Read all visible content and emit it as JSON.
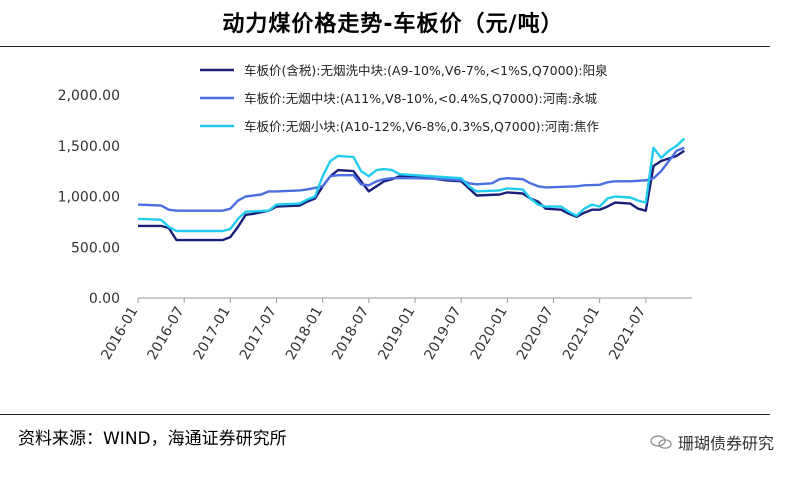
{
  "title": "动力煤价格走势-车板价（元/吨）",
  "source": "资料来源：WIND，海通证券研究所",
  "watermark": "珊瑚债券研究",
  "colors": {
    "dark_navy": "#1a1f7a",
    "royal_blue": "#4a6fe0",
    "cyan": "#22ccee"
  },
  "chart_data": {
    "type": "line",
    "title": "动力煤价格走势-车板价（元/吨）",
    "xlabel": "",
    "ylabel": "",
    "ylim": [
      0,
      2000
    ],
    "yticks": [
      "2,000.00",
      "1,500.00",
      "1,000.00",
      "500.00",
      "0.00"
    ],
    "ytick_values": [
      2000,
      1500,
      1000,
      500,
      0
    ],
    "xticks": [
      "2016-01",
      "2016-07",
      "2017-01",
      "2017-07",
      "2018-01",
      "2018-07",
      "2019-01",
      "2019-07",
      "2020-01",
      "2020-07",
      "2021-01",
      "2021-07"
    ],
    "grid": false,
    "legend_position": "top-right",
    "series": [
      {
        "name": "车板价(含税):无烟洗中块:(A9-10%,V6-7%,<1%S,Q7000):阳泉",
        "color": "#1a1f7a",
        "points": [
          [
            0,
            710
          ],
          [
            3,
            710
          ],
          [
            4,
            690
          ],
          [
            5,
            570
          ],
          [
            11,
            570
          ],
          [
            12,
            600
          ],
          [
            13,
            700
          ],
          [
            14,
            820
          ],
          [
            15,
            830
          ],
          [
            17,
            860
          ],
          [
            18,
            900
          ],
          [
            21,
            910
          ],
          [
            22,
            950
          ],
          [
            23,
            980
          ],
          [
            24,
            1100
          ],
          [
            25,
            1200
          ],
          [
            26,
            1260
          ],
          [
            28,
            1250
          ],
          [
            29,
            1150
          ],
          [
            30,
            1050
          ],
          [
            31,
            1100
          ],
          [
            32,
            1150
          ],
          [
            33,
            1170
          ],
          [
            34,
            1200
          ],
          [
            36,
            1190
          ],
          [
            38,
            1180
          ],
          [
            40,
            1160
          ],
          [
            42,
            1150
          ],
          [
            43,
            1080
          ],
          [
            44,
            1010
          ],
          [
            47,
            1020
          ],
          [
            48,
            1040
          ],
          [
            50,
            1030
          ],
          [
            51,
            980
          ],
          [
            52,
            950
          ],
          [
            53,
            880
          ],
          [
            55,
            870
          ],
          [
            56,
            830
          ],
          [
            57,
            800
          ],
          [
            58,
            840
          ],
          [
            59,
            870
          ],
          [
            60,
            870
          ],
          [
            61,
            900
          ],
          [
            62,
            940
          ],
          [
            64,
            930
          ],
          [
            65,
            880
          ],
          [
            66,
            860
          ],
          [
            67,
            1300
          ],
          [
            68,
            1350
          ],
          [
            70,
            1400
          ],
          [
            71,
            1450
          ]
        ]
      },
      {
        "name": "车板价:无烟中块:(A11%,V8-10%,<0.4%S,Q7000):河南:永城",
        "color": "#4a6fe0",
        "points": [
          [
            0,
            920
          ],
          [
            3,
            910
          ],
          [
            4,
            870
          ],
          [
            5,
            860
          ],
          [
            11,
            860
          ],
          [
            12,
            880
          ],
          [
            13,
            960
          ],
          [
            14,
            1000
          ],
          [
            16,
            1020
          ],
          [
            17,
            1050
          ],
          [
            18,
            1050
          ],
          [
            21,
            1060
          ],
          [
            22,
            1070
          ],
          [
            24,
            1100
          ],
          [
            25,
            1200
          ],
          [
            26,
            1210
          ],
          [
            28,
            1210
          ],
          [
            29,
            1120
          ],
          [
            30,
            1110
          ],
          [
            31,
            1150
          ],
          [
            32,
            1170
          ],
          [
            33,
            1180
          ],
          [
            36,
            1180
          ],
          [
            38,
            1175
          ],
          [
            40,
            1170
          ],
          [
            42,
            1160
          ],
          [
            43,
            1130
          ],
          [
            44,
            1120
          ],
          [
            46,
            1130
          ],
          [
            47,
            1170
          ],
          [
            48,
            1180
          ],
          [
            50,
            1170
          ],
          [
            51,
            1130
          ],
          [
            52,
            1100
          ],
          [
            53,
            1090
          ],
          [
            57,
            1100
          ],
          [
            58,
            1110
          ],
          [
            60,
            1115
          ],
          [
            61,
            1140
          ],
          [
            62,
            1150
          ],
          [
            64,
            1150
          ],
          [
            66,
            1160
          ],
          [
            67,
            1180
          ],
          [
            68,
            1250
          ],
          [
            69,
            1350
          ],
          [
            70,
            1450
          ],
          [
            71,
            1480
          ]
        ]
      },
      {
        "name": "车板价:无烟小块:(A10-12%,V6-8%,0.3%S,Q7000):河南:焦作",
        "color": "#22ccee",
        "points": [
          [
            0,
            780
          ],
          [
            3,
            770
          ],
          [
            4,
            700
          ],
          [
            5,
            660
          ],
          [
            11,
            660
          ],
          [
            12,
            680
          ],
          [
            13,
            780
          ],
          [
            14,
            850
          ],
          [
            17,
            860
          ],
          [
            18,
            920
          ],
          [
            21,
            930
          ],
          [
            22,
            970
          ],
          [
            23,
            1000
          ],
          [
            24,
            1200
          ],
          [
            25,
            1350
          ],
          [
            26,
            1400
          ],
          [
            28,
            1390
          ],
          [
            29,
            1250
          ],
          [
            30,
            1200
          ],
          [
            31,
            1260
          ],
          [
            32,
            1270
          ],
          [
            33,
            1260
          ],
          [
            34,
            1220
          ],
          [
            36,
            1210
          ],
          [
            38,
            1200
          ],
          [
            40,
            1190
          ],
          [
            42,
            1180
          ],
          [
            43,
            1100
          ],
          [
            44,
            1050
          ],
          [
            47,
            1060
          ],
          [
            48,
            1080
          ],
          [
            50,
            1070
          ],
          [
            51,
            980
          ],
          [
            52,
            920
          ],
          [
            53,
            900
          ],
          [
            55,
            900
          ],
          [
            56,
            850
          ],
          [
            57,
            810
          ],
          [
            58,
            880
          ],
          [
            59,
            920
          ],
          [
            60,
            900
          ],
          [
            61,
            980
          ],
          [
            62,
            1000
          ],
          [
            64,
            990
          ],
          [
            65,
            960
          ],
          [
            66,
            940
          ],
          [
            67,
            1480
          ],
          [
            68,
            1380
          ],
          [
            69,
            1450
          ],
          [
            70,
            1500
          ],
          [
            71,
            1570
          ]
        ]
      }
    ]
  }
}
